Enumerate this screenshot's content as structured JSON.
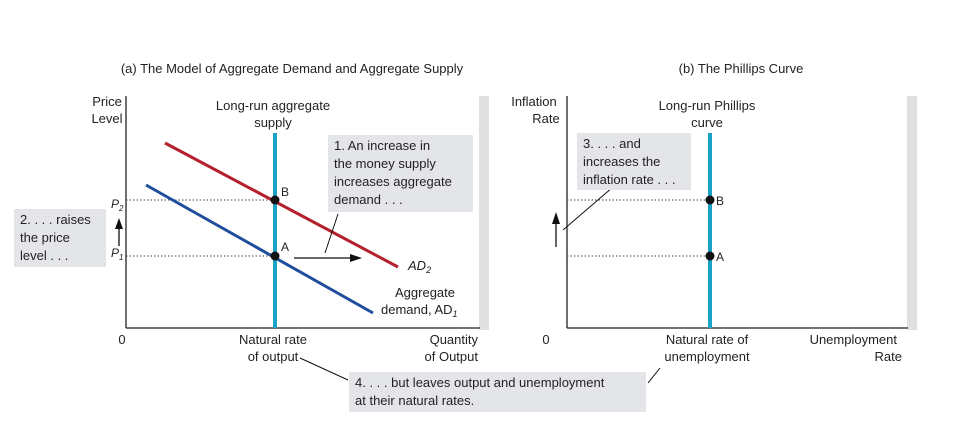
{
  "panel_a": {
    "title": "(a) The Model of Aggregate Demand and Aggregate Supply",
    "y_label": [
      "Price",
      "Level"
    ],
    "x_label": [
      "Quantity",
      "of Output"
    ],
    "origin": "0",
    "x_tick": [
      "Natural rate",
      "of output"
    ],
    "y_ticks": {
      "p2_main": "P",
      "p2_sub": "2",
      "p1_main": "P",
      "p1_sub": "1"
    },
    "lras_label": [
      "Long-run aggregate",
      "supply"
    ],
    "ad2_main": "AD",
    "ad2_sub": "2",
    "ad1_label": [
      "Aggregate",
      "demand, AD"
    ],
    "ad1_sub": "1",
    "point_b": "B",
    "point_a": "A"
  },
  "panel_b": {
    "title": "(b) The Phillips Curve",
    "y_label": [
      "Inflation",
      "Rate"
    ],
    "x_label": [
      "Unemployment",
      "Rate"
    ],
    "origin": "0",
    "x_tick": [
      "Natural rate of",
      "unemployment"
    ],
    "lrpc_label": [
      "Long-run Phillips",
      "curve"
    ],
    "point_b": "B",
    "point_a": "A"
  },
  "notes": {
    "note1": [
      "1. An increase in",
      "the money supply",
      "increases aggregate",
      "demand . . ."
    ],
    "note2": [
      "2. . . . raises",
      "the price",
      "level . . ."
    ],
    "note3": [
      "3. . . . and",
      "increases the",
      "inflation rate . . ."
    ],
    "note4": [
      "4. . . . but leaves output and unemployment",
      "at their natural rates."
    ]
  },
  "colors": {
    "lras": "#1aa3c4",
    "ad1": "#1f4e9c",
    "ad2": "#b5202e",
    "note_bg": "#e3e5e8",
    "frame": "#e0e0e0"
  }
}
